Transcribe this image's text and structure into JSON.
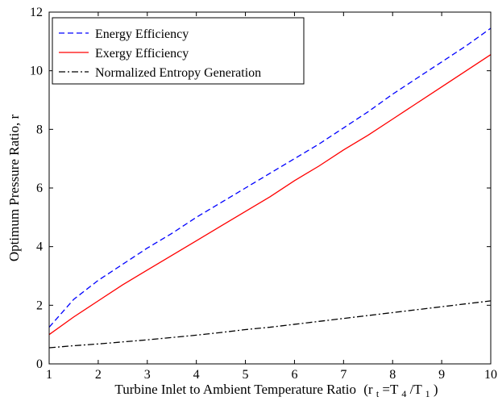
{
  "chart_data": {
    "type": "line",
    "xlabel": "Turbine Inlet to Ambient Temperature Ratio",
    "xlabel_suffix": {
      "open": "(r",
      "sub1": "t",
      "mid": "=T",
      "sub2": "4",
      "slash": "/T",
      "sub3": "1",
      "close": ")"
    },
    "ylabel": "Optimum Pressure Ratio, r",
    "xlim": [
      1,
      10
    ],
    "ylim": [
      0,
      12
    ],
    "xticks": [
      1,
      2,
      3,
      4,
      5,
      6,
      7,
      8,
      9,
      10
    ],
    "yticks": [
      0,
      2,
      4,
      6,
      8,
      10,
      12
    ],
    "grid": false,
    "legend_position": "top-left",
    "series": [
      {
        "name": "Energy Efficiency",
        "color": "#0000ff",
        "style": "dashed",
        "x": [
          1,
          1.5,
          2,
          2.5,
          3,
          3.5,
          4,
          4.5,
          5,
          5.5,
          6,
          6.5,
          7,
          7.5,
          8,
          8.5,
          9,
          9.5,
          10
        ],
        "y": [
          1.25,
          2.2,
          2.85,
          3.4,
          3.95,
          4.45,
          5.0,
          5.5,
          6.0,
          6.5,
          7.0,
          7.5,
          8.05,
          8.6,
          9.2,
          9.75,
          10.3,
          10.85,
          11.45
        ]
      },
      {
        "name": "Exergy Efficiency",
        "color": "#ff0000",
        "style": "solid",
        "x": [
          1,
          1.5,
          2,
          2.5,
          3,
          3.5,
          4,
          4.5,
          5,
          5.5,
          6,
          6.5,
          7,
          7.5,
          8,
          8.5,
          9,
          9.5,
          10
        ],
        "y": [
          1.0,
          1.6,
          2.15,
          2.7,
          3.2,
          3.7,
          4.2,
          4.7,
          5.2,
          5.7,
          6.25,
          6.75,
          7.3,
          7.8,
          8.35,
          8.9,
          9.45,
          10.0,
          10.55
        ]
      },
      {
        "name": "Normalized Entropy Generation",
        "color": "#000000",
        "style": "dashdot",
        "x": [
          1,
          1.5,
          2,
          2.5,
          3,
          3.5,
          4,
          4.5,
          5,
          5.5,
          6,
          6.5,
          7,
          7.5,
          8,
          8.5,
          9,
          9.5,
          10
        ],
        "y": [
          0.55,
          0.62,
          0.68,
          0.75,
          0.82,
          0.9,
          0.98,
          1.07,
          1.17,
          1.25,
          1.35,
          1.45,
          1.55,
          1.65,
          1.75,
          1.85,
          1.95,
          2.05,
          2.15
        ]
      }
    ]
  }
}
